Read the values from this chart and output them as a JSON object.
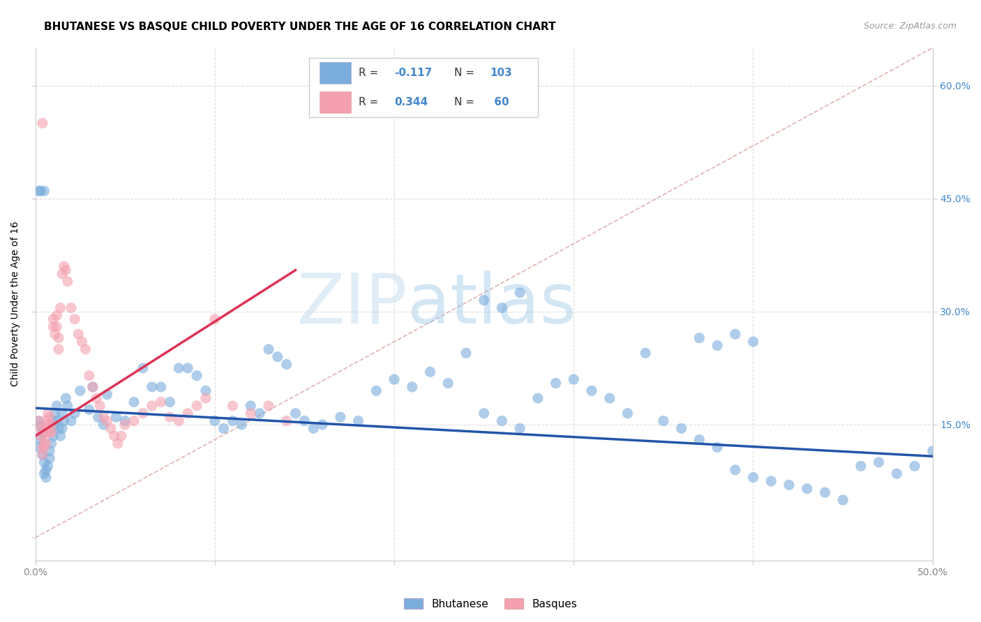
{
  "title": "BHUTANESE VS BASQUE CHILD POVERTY UNDER THE AGE OF 16 CORRELATION CHART",
  "source": "Source: ZipAtlas.com",
  "ylabel": "Child Poverty Under the Age of 16",
  "right_yticks": [
    "60.0%",
    "45.0%",
    "30.0%",
    "15.0%"
  ],
  "right_ytick_vals": [
    0.6,
    0.45,
    0.3,
    0.15
  ],
  "xmin": 0.0,
  "xmax": 0.5,
  "ymin": -0.03,
  "ymax": 0.65,
  "blue_R": -0.117,
  "blue_N": 103,
  "pink_R": 0.344,
  "pink_N": 60,
  "blue_color": "#7aaddc",
  "pink_color": "#f4a0b0",
  "blue_line_color": "#2255aa",
  "pink_line_color": "#dd3355",
  "diag_color": "#ddaaaa",
  "scatter_alpha": 0.6,
  "marker_size": 120,
  "watermark": "ZIPatlas",
  "watermark_color": "#b8d4ee",
  "blue_trend_x0": 0.0,
  "blue_trend_x1": 0.5,
  "blue_trend_y0": 0.172,
  "blue_trend_y1": 0.108,
  "pink_trend_x0": 0.0,
  "pink_trend_x1": 0.145,
  "pink_trend_y0": 0.135,
  "pink_trend_y1": 0.355,
  "blue_scatter_x": [
    0.002,
    0.003,
    0.004,
    0.003,
    0.002,
    0.004,
    0.005,
    0.006,
    0.005,
    0.006,
    0.008,
    0.007,
    0.008,
    0.009,
    0.01,
    0.01,
    0.01,
    0.011,
    0.012,
    0.012,
    0.013,
    0.014,
    0.015,
    0.015,
    0.016,
    0.017,
    0.018,
    0.02,
    0.022,
    0.025,
    0.03,
    0.032,
    0.035,
    0.038,
    0.04,
    0.045,
    0.05,
    0.055,
    0.06,
    0.065,
    0.07,
    0.075,
    0.08,
    0.085,
    0.09,
    0.095,
    0.1,
    0.105,
    0.11,
    0.115,
    0.12,
    0.125,
    0.13,
    0.135,
    0.14,
    0.145,
    0.15,
    0.155,
    0.16,
    0.17,
    0.18,
    0.19,
    0.2,
    0.21,
    0.22,
    0.23,
    0.24,
    0.25,
    0.26,
    0.27,
    0.28,
    0.29,
    0.3,
    0.31,
    0.32,
    0.33,
    0.34,
    0.35,
    0.36,
    0.37,
    0.38,
    0.39,
    0.4,
    0.41,
    0.42,
    0.43,
    0.44,
    0.45,
    0.46,
    0.47,
    0.48,
    0.49,
    0.5,
    0.37,
    0.38,
    0.005,
    0.003,
    0.002,
    0.25,
    0.26,
    0.27,
    0.39,
    0.4
  ],
  "blue_scatter_y": [
    0.155,
    0.148,
    0.14,
    0.13,
    0.12,
    0.11,
    0.1,
    0.09,
    0.085,
    0.08,
    0.105,
    0.095,
    0.115,
    0.125,
    0.155,
    0.145,
    0.135,
    0.165,
    0.175,
    0.155,
    0.145,
    0.135,
    0.165,
    0.145,
    0.155,
    0.185,
    0.175,
    0.155,
    0.165,
    0.195,
    0.17,
    0.2,
    0.16,
    0.15,
    0.19,
    0.16,
    0.155,
    0.18,
    0.225,
    0.2,
    0.2,
    0.18,
    0.225,
    0.225,
    0.215,
    0.195,
    0.155,
    0.145,
    0.155,
    0.15,
    0.175,
    0.165,
    0.25,
    0.24,
    0.23,
    0.165,
    0.155,
    0.145,
    0.15,
    0.16,
    0.155,
    0.195,
    0.21,
    0.2,
    0.22,
    0.205,
    0.245,
    0.165,
    0.155,
    0.145,
    0.185,
    0.205,
    0.21,
    0.195,
    0.185,
    0.165,
    0.245,
    0.155,
    0.145,
    0.13,
    0.12,
    0.09,
    0.08,
    0.075,
    0.07,
    0.065,
    0.06,
    0.05,
    0.095,
    0.1,
    0.085,
    0.095,
    0.115,
    0.265,
    0.255,
    0.46,
    0.46,
    0.46,
    0.315,
    0.305,
    0.325,
    0.27,
    0.26
  ],
  "pink_scatter_x": [
    0.002,
    0.003,
    0.003,
    0.004,
    0.004,
    0.005,
    0.005,
    0.005,
    0.006,
    0.006,
    0.006,
    0.007,
    0.007,
    0.008,
    0.008,
    0.009,
    0.009,
    0.01,
    0.01,
    0.011,
    0.012,
    0.012,
    0.013,
    0.013,
    0.014,
    0.015,
    0.016,
    0.017,
    0.018,
    0.02,
    0.022,
    0.024,
    0.026,
    0.028,
    0.03,
    0.032,
    0.034,
    0.036,
    0.038,
    0.04,
    0.042,
    0.044,
    0.046,
    0.048,
    0.05,
    0.055,
    0.06,
    0.065,
    0.07,
    0.075,
    0.08,
    0.085,
    0.09,
    0.095,
    0.1,
    0.11,
    0.12,
    0.13,
    0.14,
    0.004
  ],
  "pink_scatter_y": [
    0.155,
    0.145,
    0.135,
    0.12,
    0.11,
    0.145,
    0.13,
    0.12,
    0.155,
    0.14,
    0.125,
    0.165,
    0.15,
    0.14,
    0.16,
    0.15,
    0.14,
    0.29,
    0.28,
    0.27,
    0.295,
    0.28,
    0.265,
    0.25,
    0.305,
    0.35,
    0.36,
    0.355,
    0.34,
    0.305,
    0.29,
    0.27,
    0.26,
    0.25,
    0.215,
    0.2,
    0.185,
    0.175,
    0.16,
    0.155,
    0.145,
    0.135,
    0.125,
    0.135,
    0.15,
    0.155,
    0.165,
    0.175,
    0.18,
    0.16,
    0.155,
    0.165,
    0.175,
    0.185,
    0.29,
    0.175,
    0.165,
    0.175,
    0.155,
    0.55
  ]
}
